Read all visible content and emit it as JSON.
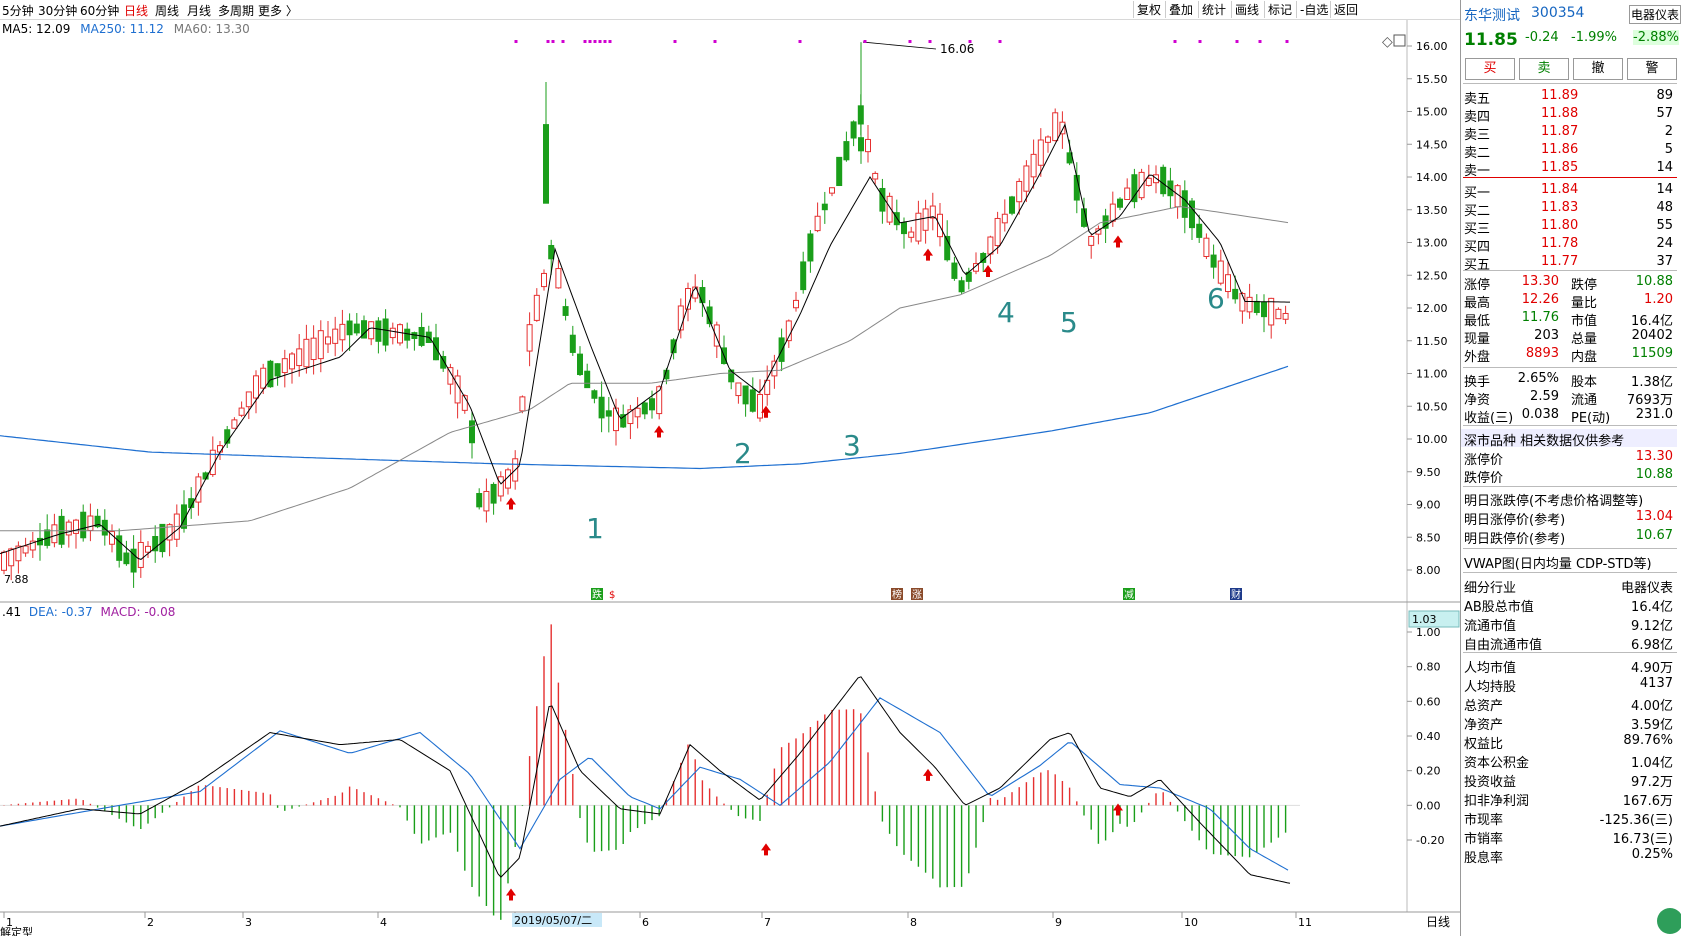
{
  "toolbar": {
    "periods": [
      "5分钟",
      "30分钟",
      "60分钟",
      "日线",
      "周线",
      "月线",
      "多周期",
      "更多 〉"
    ],
    "active_period": "日线",
    "right_tools": [
      "复权",
      "叠加",
      "统计",
      "画线",
      "标记",
      "-自选",
      "返回"
    ]
  },
  "ma_legend": {
    "ma5": "MA5: 12.09",
    "ma250": "MA250: 11.12",
    "ma60": "MA60: 13.30"
  },
  "macd_legend": {
    "diff": ".41",
    "dea": "DEA: -0.37",
    "macd": "MACD: -0.08"
  },
  "macd_value_box": "1.03",
  "bottom_axis": {
    "date_label": "2019/05/07/二",
    "period_label": "日线",
    "cut_label": "解定型"
  },
  "chart_data": {
    "type": "candlestick",
    "title": "",
    "price_axis": {
      "min": 8.0,
      "max": 16.0,
      "ticks": [
        "16.00",
        "15.50",
        "15.00",
        "14.50",
        "14.00",
        "13.50",
        "13.00",
        "12.50",
        "12.00",
        "11.50",
        "11.00",
        "10.50",
        "10.00",
        "9.50",
        "9.00",
        "8.50",
        "8.00"
      ]
    },
    "macd_axis": {
      "min": -0.2,
      "max": 1.0,
      "ticks": [
        "1.00",
        "0.80",
        "0.60",
        "0.40",
        "0.20",
        "0.00",
        "-0.20"
      ]
    },
    "month_labels": [
      "1",
      "2",
      "3",
      "4",
      "5",
      "6",
      "7",
      "8",
      "9",
      "10",
      "11"
    ],
    "annotations": {
      "max_price": "16.06",
      "min_price": "7.88",
      "wave_labels": [
        "1",
        "2",
        "3",
        "4",
        "5",
        "6"
      ]
    },
    "event_badges": [
      "跌",
      "$",
      "榜",
      "涨",
      "减",
      "财"
    ],
    "series": [
      {
        "name": "MA5"
      },
      {
        "name": "MA60"
      },
      {
        "name": "MA250"
      }
    ],
    "ma250_anchor": [
      [
        0,
        10.05
      ],
      [
        150,
        9.8
      ],
      [
        300,
        9.72
      ],
      [
        500,
        9.62
      ],
      [
        700,
        9.55
      ],
      [
        800,
        9.62
      ],
      [
        900,
        9.78
      ],
      [
        1050,
        10.12
      ],
      [
        1150,
        10.4
      ],
      [
        1290,
        11.12
      ]
    ],
    "ma60_anchor": [
      [
        0,
        8.6
      ],
      [
        120,
        8.6
      ],
      [
        250,
        8.75
      ],
      [
        350,
        9.25
      ],
      [
        450,
        10.1
      ],
      [
        530,
        10.45
      ],
      [
        570,
        10.85
      ],
      [
        650,
        10.85
      ],
      [
        720,
        11.0
      ],
      [
        780,
        11.05
      ],
      [
        850,
        11.5
      ],
      [
        900,
        12.0
      ],
      [
        960,
        12.2
      ],
      [
        1050,
        12.8
      ],
      [
        1100,
        13.3
      ],
      [
        1180,
        13.55
      ],
      [
        1290,
        13.3
      ]
    ],
    "ma5_anchor": [
      [
        0,
        8.25
      ],
      [
        60,
        8.55
      ],
      [
        100,
        8.7
      ],
      [
        140,
        8.15
      ],
      [
        180,
        8.65
      ],
      [
        220,
        9.8
      ],
      [
        270,
        10.9
      ],
      [
        340,
        11.25
      ],
      [
        370,
        11.7
      ],
      [
        430,
        11.55
      ],
      [
        470,
        10.5
      ],
      [
        500,
        9.3
      ],
      [
        520,
        9.6
      ],
      [
        555,
        12.9
      ],
      [
        590,
        11.45
      ],
      [
        620,
        10.3
      ],
      [
        660,
        10.75
      ],
      [
        695,
        12.35
      ],
      [
        730,
        11.05
      ],
      [
        760,
        10.7
      ],
      [
        800,
        11.9
      ],
      [
        830,
        12.95
      ],
      [
        870,
        14.0
      ],
      [
        900,
        13.3
      ],
      [
        935,
        13.4
      ],
      [
        965,
        12.5
      ],
      [
        1000,
        12.95
      ],
      [
        1040,
        14.05
      ],
      [
        1065,
        14.8
      ],
      [
        1090,
        13.1
      ],
      [
        1120,
        13.4
      ],
      [
        1150,
        14.05
      ],
      [
        1185,
        13.65
      ],
      [
        1220,
        13.0
      ],
      [
        1245,
        12.1
      ],
      [
        1290,
        12.09
      ]
    ],
    "price_path": [
      [
        0,
        8.1
      ],
      [
        60,
        8.6
      ],
      [
        100,
        8.75
      ],
      [
        130,
        8.1
      ],
      [
        180,
        8.7
      ],
      [
        220,
        9.85
      ],
      [
        260,
        10.9
      ],
      [
        350,
        11.7
      ],
      [
        430,
        11.55
      ],
      [
        470,
        10.4
      ],
      [
        480,
        8.95
      ],
      [
        515,
        9.5
      ],
      [
        530,
        11.6
      ],
      [
        552,
        12.9
      ],
      [
        575,
        11.3
      ],
      [
        600,
        10.5
      ],
      [
        620,
        10.25
      ],
      [
        660,
        10.6
      ],
      [
        685,
        12.1
      ],
      [
        700,
        12.3
      ],
      [
        735,
        10.8
      ],
      [
        760,
        10.5
      ],
      [
        790,
        11.7
      ],
      [
        815,
        13.2
      ],
      [
        835,
        13.9
      ],
      [
        860,
        15.0
      ],
      [
        880,
        13.7
      ],
      [
        910,
        13.1
      ],
      [
        935,
        13.5
      ],
      [
        960,
        12.3
      ],
      [
        985,
        12.8
      ],
      [
        1020,
        13.8
      ],
      [
        1060,
        14.9
      ],
      [
        1090,
        13.0
      ],
      [
        1130,
        13.8
      ],
      [
        1160,
        14.0
      ],
      [
        1190,
        13.5
      ],
      [
        1210,
        12.8
      ],
      [
        1240,
        12.1
      ],
      [
        1290,
        11.85
      ]
    ],
    "spikes": [
      {
        "x": 546,
        "high": 15.45,
        "low": 13.6,
        "open": 13.6,
        "close": 14.8
      },
      {
        "x": 861,
        "high": 16.06,
        "low": 14.2,
        "open": 14.4,
        "close": 14.6
      }
    ],
    "buy_arrows_price": [
      [
        511,
        9.0
      ],
      [
        659,
        10.1
      ],
      [
        766,
        10.4
      ],
      [
        928,
        12.8
      ],
      [
        988,
        12.55
      ],
      [
        1118,
        13.0
      ]
    ],
    "buy_arrows_macd": [
      [
        511,
        -0.52
      ],
      [
        766,
        -0.26
      ],
      [
        928,
        0.17
      ],
      [
        1118,
        -0.03
      ]
    ],
    "macd_diff_anchor": [
      [
        0,
        -0.12
      ],
      [
        80,
        -0.02
      ],
      [
        140,
        -0.05
      ],
      [
        200,
        0.14
      ],
      [
        270,
        0.42
      ],
      [
        340,
        0.35
      ],
      [
        400,
        0.38
      ],
      [
        450,
        0.2
      ],
      [
        500,
        -0.42
      ],
      [
        520,
        -0.3
      ],
      [
        550,
        0.6
      ],
      [
        580,
        0.2
      ],
      [
        620,
        -0.02
      ],
      [
        660,
        -0.05
      ],
      [
        690,
        0.35
      ],
      [
        720,
        0.2
      ],
      [
        760,
        0.03
      ],
      [
        800,
        0.3
      ],
      [
        860,
        0.75
      ],
      [
        900,
        0.42
      ],
      [
        935,
        0.22
      ],
      [
        965,
        0.0
      ],
      [
        1000,
        0.1
      ],
      [
        1050,
        0.38
      ],
      [
        1070,
        0.42
      ],
      [
        1100,
        0.1
      ],
      [
        1130,
        0.05
      ],
      [
        1160,
        0.15
      ],
      [
        1200,
        -0.1
      ],
      [
        1250,
        -0.4
      ],
      [
        1290,
        -0.45
      ]
    ],
    "macd_dea_anchor": [
      [
        0,
        -0.12
      ],
      [
        100,
        -0.02
      ],
      [
        200,
        0.08
      ],
      [
        280,
        0.43
      ],
      [
        350,
        0.3
      ],
      [
        420,
        0.42
      ],
      [
        470,
        0.18
      ],
      [
        520,
        -0.25
      ],
      [
        560,
        0.15
      ],
      [
        590,
        0.28
      ],
      [
        630,
        0.05
      ],
      [
        660,
        -0.02
      ],
      [
        700,
        0.22
      ],
      [
        740,
        0.15
      ],
      [
        780,
        0.0
      ],
      [
        830,
        0.25
      ],
      [
        880,
        0.62
      ],
      [
        940,
        0.42
      ],
      [
        990,
        0.05
      ],
      [
        1040,
        0.23
      ],
      [
        1070,
        0.37
      ],
      [
        1120,
        0.12
      ],
      [
        1160,
        0.1
      ],
      [
        1210,
        -0.02
      ],
      [
        1250,
        -0.25
      ],
      [
        1290,
        -0.38
      ]
    ]
  },
  "sidebar": {
    "stock_name": "东华测试",
    "stock_code": "300354",
    "industry_tag": "电器仪表",
    "price": "11.85",
    "change": "-0.24",
    "change_pct": "-1.99%",
    "industry_change": "-2.88%",
    "buttons": [
      "买",
      "卖",
      "撤",
      "警"
    ],
    "asks": [
      {
        "l": "卖五",
        "p": "11.89",
        "v": "89"
      },
      {
        "l": "卖四",
        "p": "11.88",
        "v": "57"
      },
      {
        "l": "卖三",
        "p": "11.87",
        "v": "2"
      },
      {
        "l": "卖二",
        "p": "11.86",
        "v": "5"
      },
      {
        "l": "卖一",
        "p": "11.85",
        "v": "14"
      }
    ],
    "bids": [
      {
        "l": "买一",
        "p": "11.84",
        "v": "14"
      },
      {
        "l": "买二",
        "p": "11.83",
        "v": "48"
      },
      {
        "l": "买三",
        "p": "11.80",
        "v": "55"
      },
      {
        "l": "买四",
        "p": "11.78",
        "v": "24"
      },
      {
        "l": "买五",
        "p": "11.77",
        "v": "37"
      }
    ],
    "quote": [
      {
        "a": "涨停",
        "b": "13.30",
        "c": "跌停",
        "d": "10.88",
        "bc": "red",
        "dc": "grn"
      },
      {
        "a": "最高",
        "b": "12.26",
        "c": "量比",
        "d": "1.20",
        "bc": "red",
        "dc": "red"
      },
      {
        "a": "最低",
        "b": "11.76",
        "c": "市值",
        "d": "16.4亿",
        "bc": "grn",
        "dc": ""
      },
      {
        "a": "现量",
        "b": "203",
        "c": "总量",
        "d": "20402",
        "bc": "",
        "dc": ""
      },
      {
        "a": "外盘",
        "b": "8893",
        "c": "内盘",
        "d": "11509",
        "bc": "red",
        "dc": "grn"
      }
    ],
    "fund": [
      {
        "a": "换手",
        "b": "2.65%",
        "c": "股本",
        "d": "1.38亿"
      },
      {
        "a": "净资",
        "b": "2.59",
        "c": "流通",
        "d": "7693万"
      },
      {
        "a": "收益(三)",
        "b": "0.038",
        "c": "PE(动)",
        "d": "231.0"
      }
    ],
    "market_title": "深市品种  相关数据仅供参考",
    "limit_up_label": "涨停价",
    "limit_up": "13.30",
    "limit_down_label": "跌停价",
    "limit_down": "10.88",
    "tomorrow_title": "明日涨跌停(不考虑价格调整等)",
    "tomorrow_up_label": "明日涨停价(参考)",
    "tomorrow_up": "13.04",
    "tomorrow_down_label": "明日跌停价(参考)",
    "tomorrow_down": "10.67",
    "vwap": "VWAP图(日内均量 CDP-STD等)",
    "details": [
      {
        "k": "细分行业",
        "v": "电器仪表"
      },
      {
        "k": "AB股总市值",
        "v": "16.4亿"
      },
      {
        "k": "流通市值",
        "v": "9.12亿"
      },
      {
        "k": "自由流通市值",
        "v": "6.98亿"
      },
      {
        "k": "人均市值",
        "v": "4.90万"
      },
      {
        "k": "人均持股",
        "v": "4137"
      },
      {
        "k": "总资产",
        "v": "4.00亿"
      },
      {
        "k": "净资产",
        "v": "3.59亿"
      },
      {
        "k": "权益比",
        "v": "89.76%"
      },
      {
        "k": "资本公积金",
        "v": "1.04亿"
      },
      {
        "k": "投资收益",
        "v": "97.2万"
      },
      {
        "k": "扣非净利润",
        "v": "167.6万"
      },
      {
        "k": "市现率",
        "v": "-125.36(三)"
      },
      {
        "k": "市销率",
        "v": "16.73(三)"
      },
      {
        "k": "股息率",
        "v": "0.25%"
      }
    ]
  }
}
